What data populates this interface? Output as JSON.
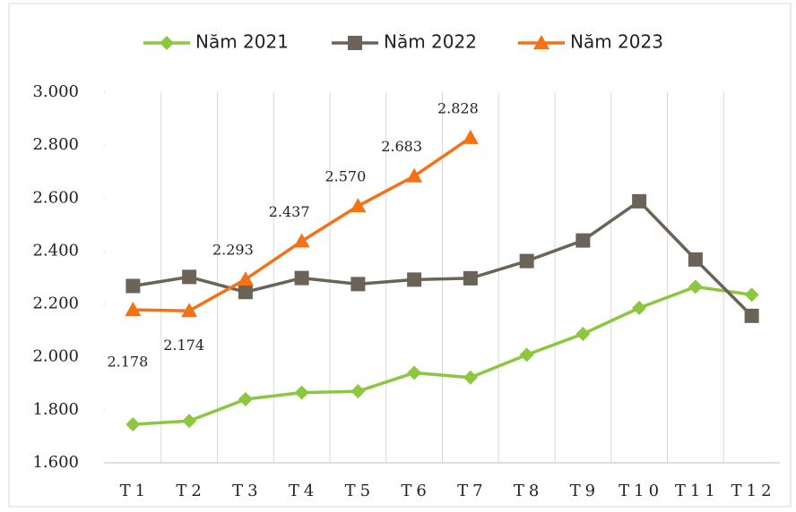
{
  "chart_data": {
    "type": "line",
    "categories": [
      "T1",
      "T2",
      "T3",
      "T4",
      "T5",
      "T6",
      "T7",
      "T8",
      "T9",
      "T10",
      "T11",
      "T12"
    ],
    "series": [
      {
        "name": "Năm 2021",
        "color": "#8dc63f",
        "marker": "diamond",
        "values": [
          1745,
          1758,
          1840,
          1865,
          1870,
          1940,
          1922,
          2008,
          2087,
          2185,
          2265,
          2235
        ]
      },
      {
        "name": "Năm 2022",
        "color": "#6b6357",
        "marker": "square",
        "values": [
          2268,
          2302,
          2245,
          2298,
          2275,
          2292,
          2297,
          2362,
          2440,
          2588,
          2368,
          2155
        ]
      },
      {
        "name": "Năm 2023",
        "color": "#f47216",
        "marker": "triangle",
        "values": [
          2178,
          2174,
          2293,
          2437,
          2570,
          2683,
          2828,
          null,
          null,
          null,
          null,
          null
        ],
        "value_labels": [
          "2.178",
          "2.174",
          "2.293",
          "2.437",
          "2.570",
          "2.683",
          "2.828",
          null,
          null,
          null,
          null,
          null
        ]
      }
    ],
    "ylim": [
      1600,
      3000
    ],
    "yticks": [
      {
        "value": 1600,
        "label": "1.600"
      },
      {
        "value": 1800,
        "label": "1.800"
      },
      {
        "value": 2000,
        "label": "2.000"
      },
      {
        "value": 2200,
        "label": "2.200"
      },
      {
        "value": 2400,
        "label": "2.400"
      },
      {
        "value": 2600,
        "label": "2.600"
      },
      {
        "value": 2800,
        "label": "2.800"
      },
      {
        "value": 3000,
        "label": "3.000"
      }
    ],
    "legend": "top"
  }
}
